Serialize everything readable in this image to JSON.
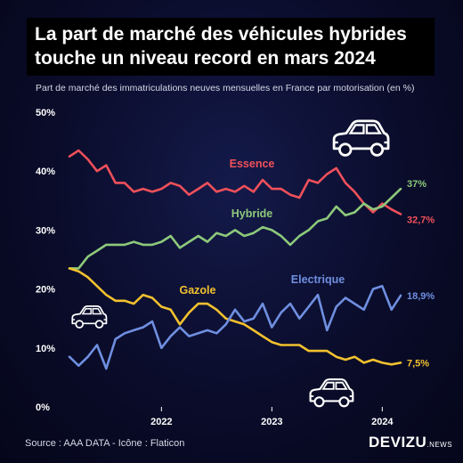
{
  "title_line1": "La part de marché des véhicules hybrides",
  "title_line2": "touche un niveau record en mars 2024",
  "subtitle": "Part de marché des immatriculations neuves mensuelles en France par motorisation (en %)",
  "source": "Source : AAA DATA - Icône : Flaticon",
  "brand": {
    "name": "DEVIZU",
    "suffix": ".NEWS"
  },
  "icons": [
    "car-icon",
    "car-icon",
    "car-icon"
  ],
  "chart_data": {
    "type": "line",
    "ylim": [
      0,
      50
    ],
    "yticks": [
      "0%",
      "10%",
      "20%",
      "30%",
      "40%",
      "50%"
    ],
    "ytick_values": [
      0,
      10,
      20,
      30,
      40,
      50
    ],
    "xticks": [
      "2022",
      "2023",
      "2024"
    ],
    "xtick_values": [
      "2022-01",
      "2023-01",
      "2024-01"
    ],
    "x": [
      "2021-03",
      "2021-04",
      "2021-05",
      "2021-06",
      "2021-07",
      "2021-08",
      "2021-09",
      "2021-10",
      "2021-11",
      "2021-12",
      "2022-01",
      "2022-02",
      "2022-03",
      "2022-04",
      "2022-05",
      "2022-06",
      "2022-07",
      "2022-08",
      "2022-09",
      "2022-10",
      "2022-11",
      "2022-12",
      "2023-01",
      "2023-02",
      "2023-03",
      "2023-04",
      "2023-05",
      "2023-06",
      "2023-07",
      "2023-08",
      "2023-09",
      "2023-10",
      "2023-11",
      "2023-12",
      "2024-01",
      "2024-02",
      "2024-03"
    ],
    "series": [
      {
        "name": "Essence",
        "color": "#f0505a",
        "end_label": "32,7%",
        "values": [
          42.5,
          43.5,
          42,
          40,
          41,
          38,
          38,
          36.5,
          37,
          36.5,
          37,
          38,
          37.5,
          36,
          37,
          38,
          36.5,
          37,
          36.5,
          37.5,
          36.5,
          38.5,
          37,
          37,
          36,
          35.5,
          38.5,
          38,
          39.5,
          40.5,
          38,
          36.5,
          34.5,
          33,
          34.5,
          33.5,
          32.7
        ]
      },
      {
        "name": "Hybride",
        "color": "#8dc97a",
        "end_label": "37%",
        "values": [
          23.5,
          23.5,
          25.5,
          26.5,
          27.5,
          27.5,
          27.5,
          28,
          27.5,
          27.5,
          28,
          29,
          27,
          28,
          29,
          28,
          29.5,
          29,
          30,
          29,
          29.5,
          30.5,
          30,
          29,
          27.5,
          29,
          30,
          31.5,
          32,
          34,
          32.5,
          33,
          34.5,
          33.5,
          34,
          35.5,
          37
        ]
      },
      {
        "name": "Gazole",
        "color": "#f2c12e",
        "end_label": "7,5%",
        "values": [
          23.5,
          23,
          22,
          20.5,
          19,
          18,
          18,
          17.5,
          19,
          18.5,
          17,
          16.5,
          14,
          16,
          17.5,
          17.5,
          16.5,
          15,
          14.5,
          14,
          13,
          12,
          11,
          10.5,
          10.5,
          10.5,
          9.5,
          9.5,
          9.5,
          8.5,
          8,
          8.5,
          7.5,
          8,
          7.5,
          7.2,
          7.5
        ]
      },
      {
        "name": "Electrique",
        "color": "#6f8fe0",
        "end_label": "18,9%",
        "values": [
          8.5,
          7,
          8.5,
          10.5,
          6.5,
          11.5,
          12.5,
          13,
          13.5,
          14.5,
          10,
          12,
          13.5,
          12,
          12.5,
          13,
          12.5,
          14,
          16.5,
          14.5,
          15,
          17.5,
          13.5,
          16,
          17.5,
          15,
          17,
          19,
          13,
          17,
          18.5,
          17.5,
          16.5,
          20,
          20.5,
          16.5,
          18.9
        ]
      }
    ],
    "series_label_positions": [
      "inline",
      "inline",
      "inline",
      "inline"
    ],
    "grid": false,
    "legend": "inline"
  }
}
